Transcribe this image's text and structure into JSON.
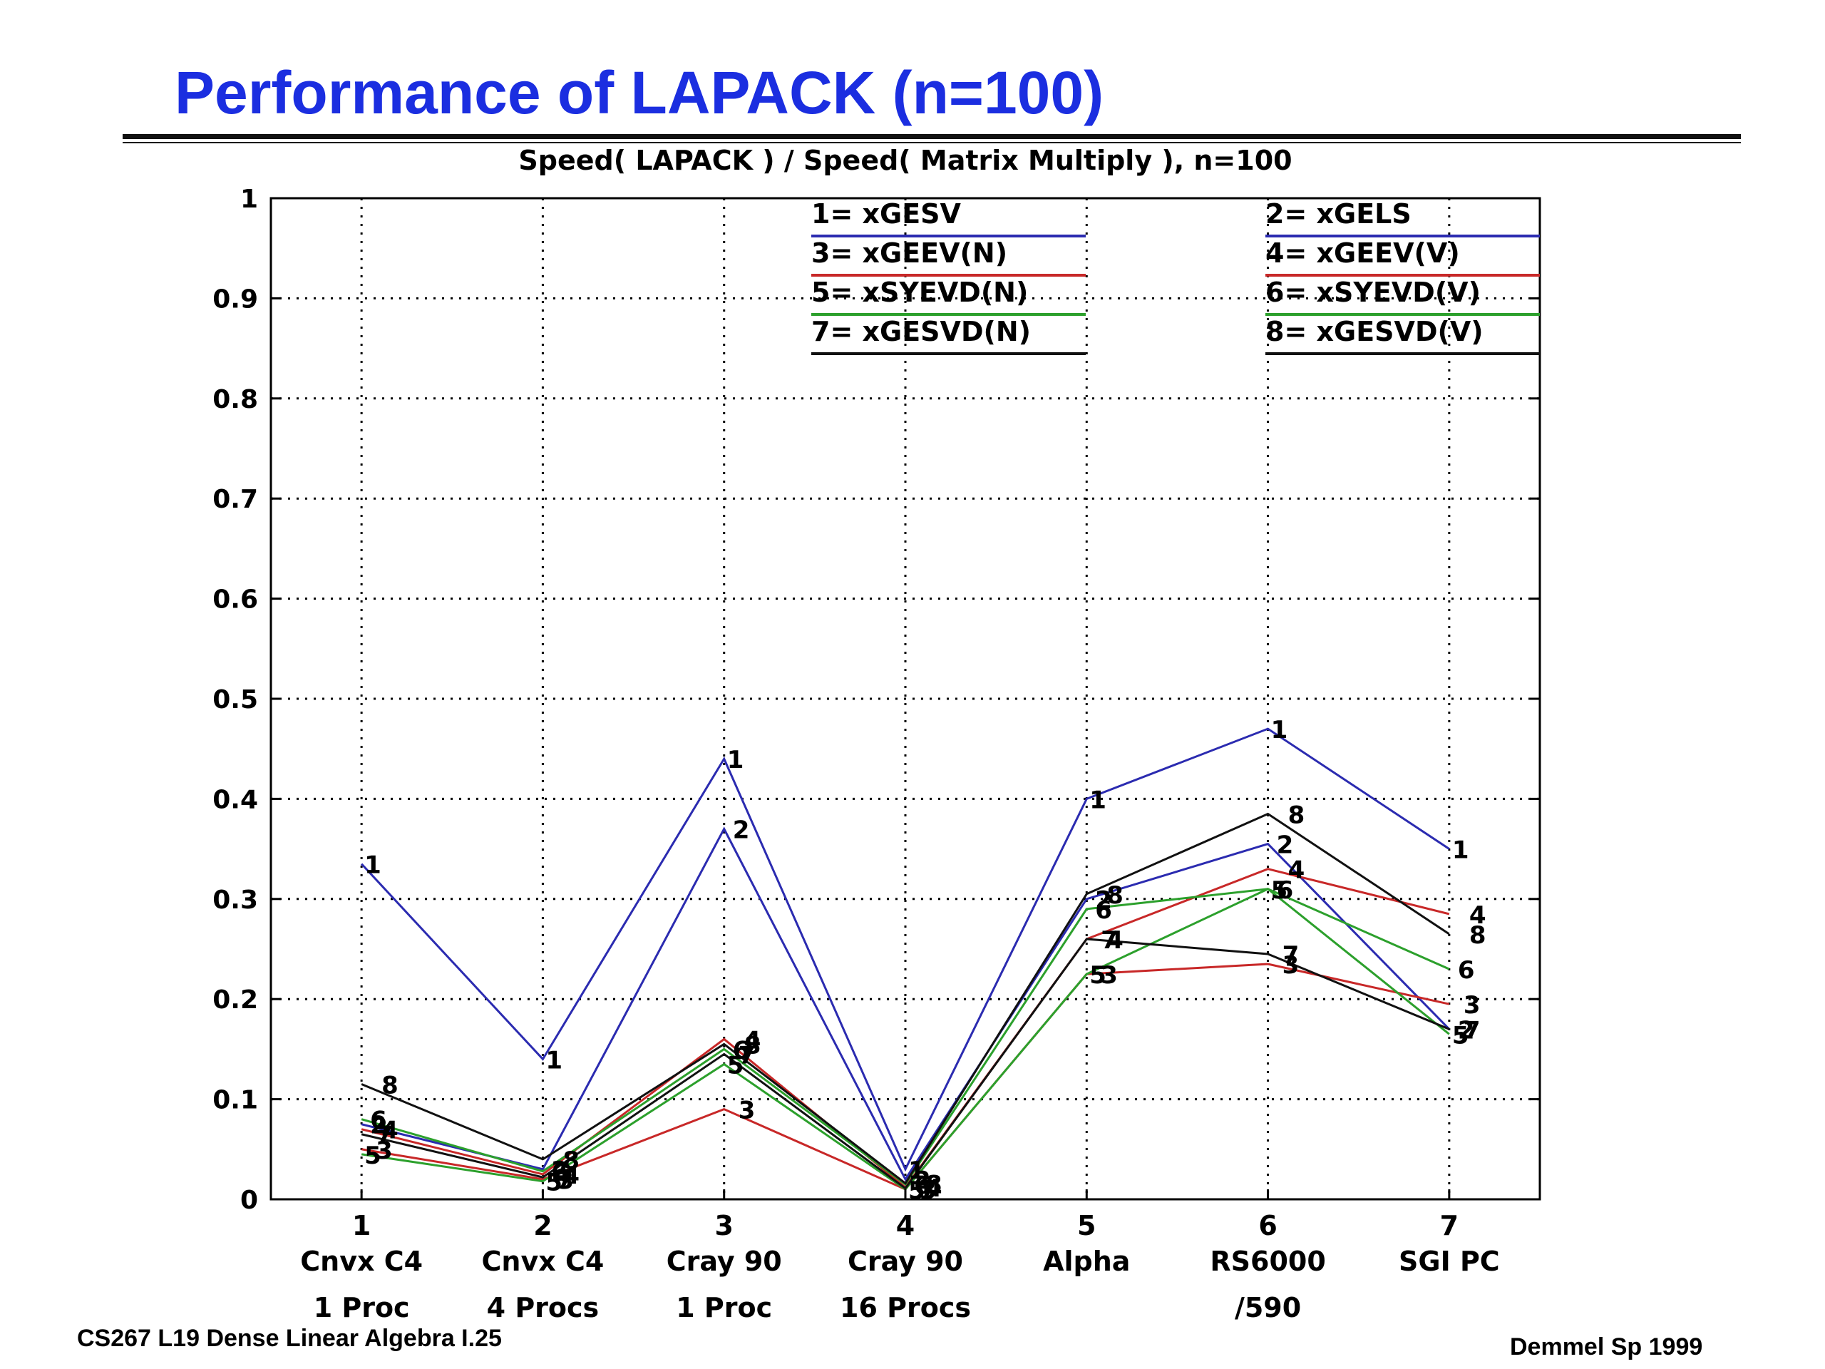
{
  "slide": {
    "title": "Performance of LAPACK (n=100)",
    "footer_left": "CS267  L19 Dense Linear Algebra I.25",
    "footer_right": "Demmel Sp 1999"
  },
  "chart_data": {
    "type": "line",
    "title": "Speed( LAPACK ) / Speed( Matrix Multiply ), n=100",
    "xlabel": "",
    "ylabel": "",
    "xlim": [
      0.5,
      7.5
    ],
    "ylim": [
      0,
      1
    ],
    "yticks": [
      "0",
      "0.1",
      "0.2",
      "0.3",
      "0.4",
      "0.5",
      "0.6",
      "0.7",
      "0.8",
      "0.9",
      "1"
    ],
    "grid": true,
    "legend_position": "top",
    "x": [
      1,
      2,
      3,
      4,
      5,
      6,
      7
    ],
    "xtick_labels": [
      [
        "1",
        "Cnvx C4",
        "1 Proc"
      ],
      [
        "2",
        "Cnvx C4",
        "4 Procs"
      ],
      [
        "3",
        "Cray 90",
        "1 Proc"
      ],
      [
        "4",
        "Cray 90",
        "16 Procs"
      ],
      [
        "5",
        "Alpha",
        ""
      ],
      [
        "6",
        "RS6000",
        "/590"
      ],
      [
        "7",
        "SGI PC",
        ""
      ]
    ],
    "series": [
      {
        "marker": "1",
        "name": "1= xGESV",
        "color": "#2b2bb0",
        "values": [
          0.335,
          0.14,
          0.44,
          0.03,
          0.4,
          0.47,
          0.35
        ]
      },
      {
        "marker": "2",
        "name": "2= xGELS",
        "color": "#2b2bb0",
        "values": [
          0.075,
          0.03,
          0.37,
          0.02,
          0.3,
          0.355,
          0.17
        ]
      },
      {
        "marker": "3",
        "name": "3= xGEEV(N)",
        "color": "#c82828",
        "values": [
          0.05,
          0.02,
          0.09,
          0.01,
          0.225,
          0.235,
          0.195
        ]
      },
      {
        "marker": "4",
        "name": "4= xGEEV(V)",
        "color": "#c82828",
        "values": [
          0.07,
          0.025,
          0.16,
          0.012,
          0.26,
          0.33,
          0.285
        ]
      },
      {
        "marker": "5",
        "name": "5= xSYEVD(N)",
        "color": "#2ca02c",
        "values": [
          0.045,
          0.018,
          0.135,
          0.01,
          0.225,
          0.31,
          0.165
        ]
      },
      {
        "marker": "6",
        "name": "6= xSYEVD(V)",
        "color": "#2ca02c",
        "values": [
          0.08,
          0.028,
          0.15,
          0.015,
          0.29,
          0.31,
          0.23
        ]
      },
      {
        "marker": "7",
        "name": "7= xGESVD(N)",
        "color": "#111111",
        "values": [
          0.065,
          0.022,
          0.145,
          0.011,
          0.26,
          0.245,
          0.17
        ]
      },
      {
        "marker": "8",
        "name": "8= xGESVD(V)",
        "color": "#111111",
        "values": [
          0.115,
          0.04,
          0.155,
          0.016,
          0.305,
          0.385,
          0.265
        ]
      }
    ]
  }
}
